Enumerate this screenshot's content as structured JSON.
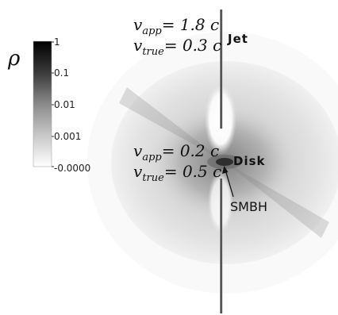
{
  "colorbar": {
    "symbol": "ρ",
    "ticks": [
      "1",
      "0.1",
      "0.01",
      "0.001",
      "-0.0000"
    ]
  },
  "jet": {
    "v_app": "v",
    "v_app_sub": "app",
    "v_app_value": "= 1.8 c",
    "v_true": "v",
    "v_true_sub": "true",
    "v_true_value": "= 0.3 c",
    "label": "Jet"
  },
  "disk": {
    "v_app": "v",
    "v_app_sub": "app",
    "v_app_value": "= 0.2 c",
    "v_true": "v",
    "v_true_sub": "true",
    "v_true_value": "= 0.5 c",
    "label": "Disk"
  },
  "smbh": {
    "label": "SMBH"
  },
  "colors": {
    "background": "#ffffff",
    "density_high": "#000000",
    "density_low": "#ffffff"
  }
}
